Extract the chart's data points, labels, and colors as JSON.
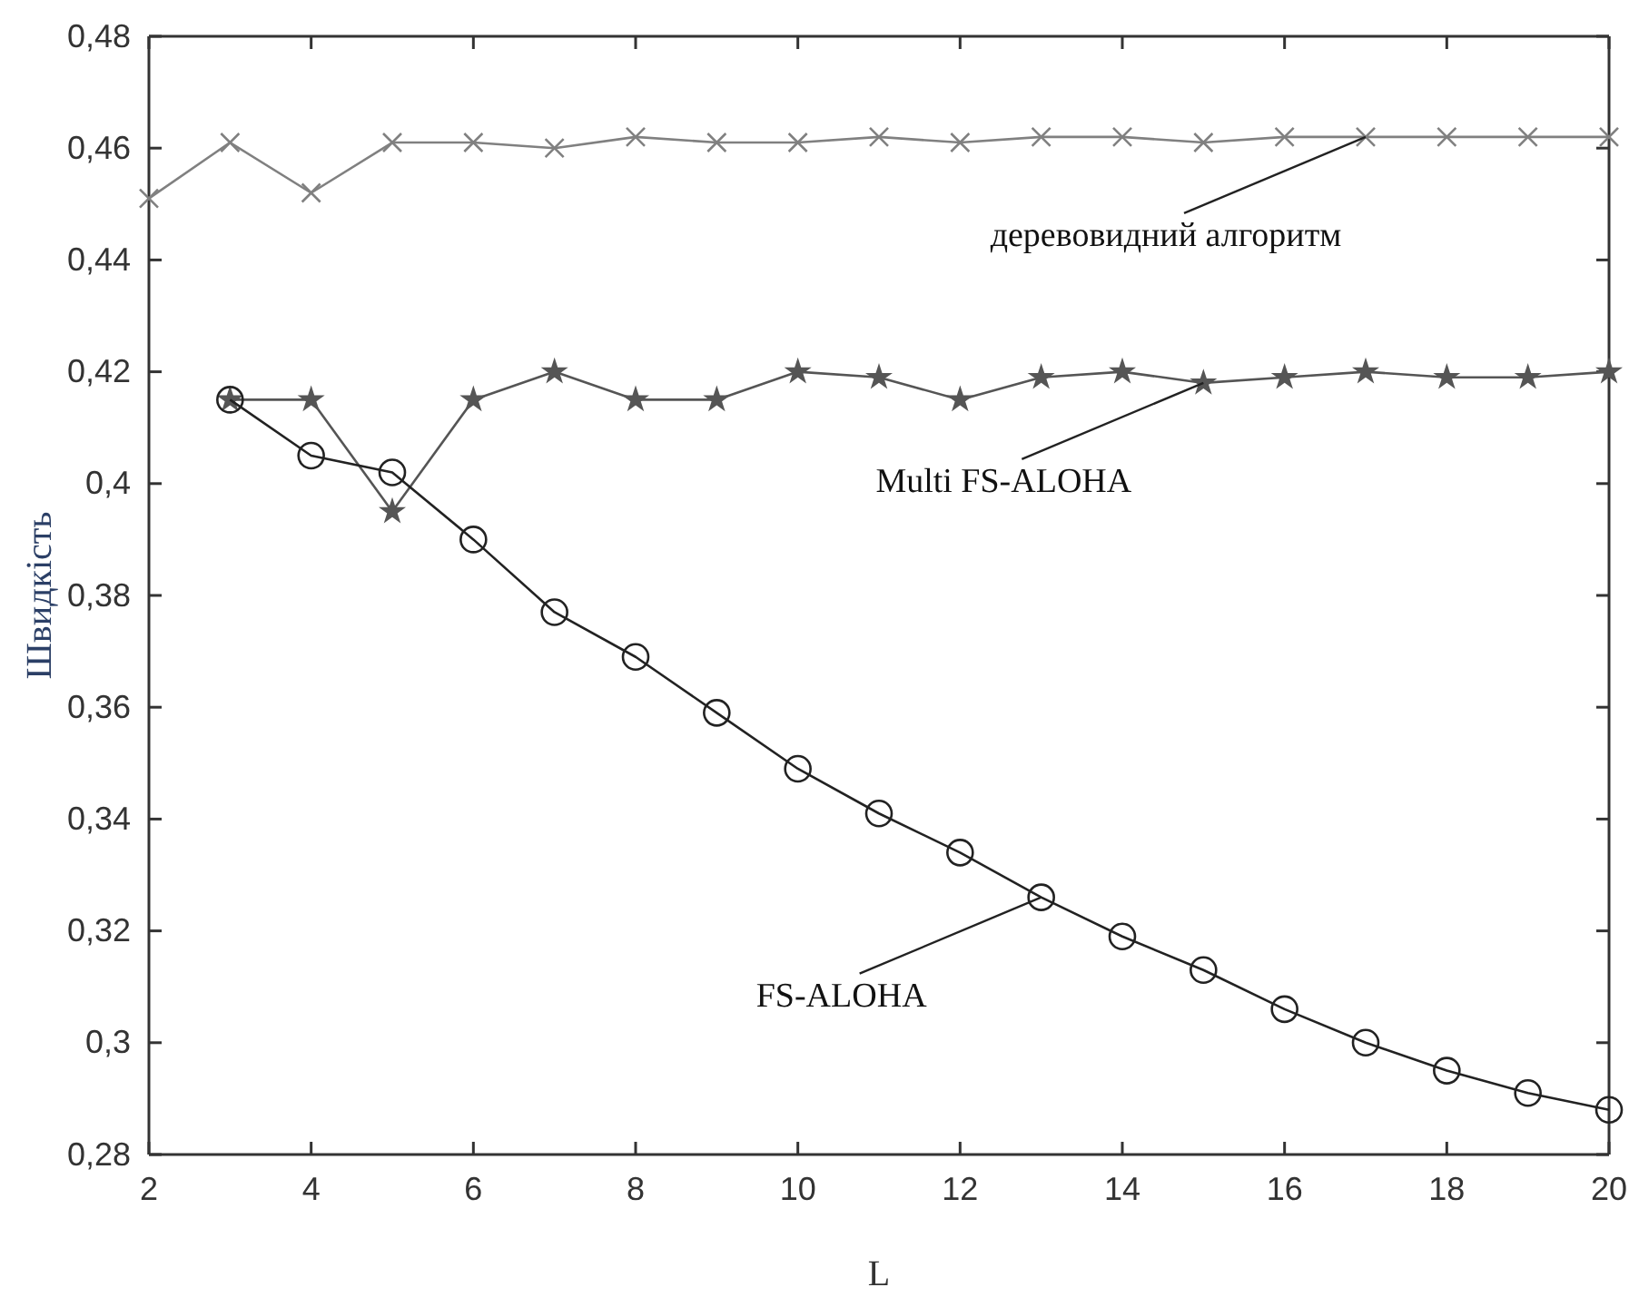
{
  "chart_data": {
    "type": "line",
    "xlabel": "L",
    "ylabel": "Швидкість",
    "xlim": [
      2,
      20
    ],
    "ylim": [
      0.28,
      0.48
    ],
    "xticks": [
      2,
      4,
      6,
      8,
      10,
      12,
      14,
      16,
      18,
      20
    ],
    "yticks": [
      {
        "value": 0.28,
        "label": "0,28"
      },
      {
        "value": 0.3,
        "label": "0,3"
      },
      {
        "value": 0.32,
        "label": "0,32"
      },
      {
        "value": 0.34,
        "label": "0,34"
      },
      {
        "value": 0.36,
        "label": "0,36"
      },
      {
        "value": 0.38,
        "label": "0,38"
      },
      {
        "value": 0.4,
        "label": "0,4"
      },
      {
        "value": 0.42,
        "label": "0,42"
      },
      {
        "value": 0.44,
        "label": "0,44"
      },
      {
        "value": 0.46,
        "label": "0,46"
      },
      {
        "value": 0.48,
        "label": "0,48"
      }
    ],
    "grid": false,
    "series": [
      {
        "color": "#808080",
        "marker": "cross",
        "x": [
          2,
          3,
          4,
          5,
          6,
          7,
          8,
          9,
          10,
          11,
          12,
          13,
          14,
          15,
          16,
          17,
          18,
          19,
          20
        ],
        "values": [
          0.451,
          0.461,
          0.452,
          0.461,
          0.461,
          0.46,
          0.462,
          0.461,
          0.461,
          0.462,
          0.461,
          0.462,
          0.462,
          0.461,
          0.462,
          0.462,
          0.462,
          0.462,
          0.462
        ]
      },
      {
        "color": "#555555",
        "marker": "star",
        "x": [
          3,
          4,
          5,
          6,
          7,
          8,
          9,
          10,
          11,
          12,
          13,
          14,
          15,
          16,
          17,
          18,
          19,
          20
        ],
        "values": [
          0.415,
          0.415,
          0.395,
          0.415,
          0.42,
          0.415,
          0.415,
          0.42,
          0.419,
          0.415,
          0.419,
          0.42,
          0.418,
          0.419,
          0.42,
          0.419,
          0.419,
          0.42
        ]
      },
      {
        "color": "#222222",
        "marker": "circle",
        "x": [
          3,
          4,
          5,
          6,
          7,
          8,
          9,
          10,
          11,
          12,
          13,
          14,
          15,
          16,
          17,
          18,
          19,
          20
        ],
        "values": [
          0.415,
          0.405,
          0.402,
          0.39,
          0.377,
          0.369,
          0.359,
          0.349,
          0.341,
          0.334,
          0.326,
          0.319,
          0.313,
          0.306,
          0.3,
          0.295,
          0.291,
          0.288
        ]
      }
    ],
    "annotations": [
      {
        "text": "деревовидний алгоритм",
        "x": 17,
        "y": 0.462
      },
      {
        "text": "Multi FS-ALOHA",
        "x": 15,
        "y": 0.418
      },
      {
        "text": "FS-ALOHA",
        "x": 13,
        "y": 0.326
      }
    ]
  }
}
